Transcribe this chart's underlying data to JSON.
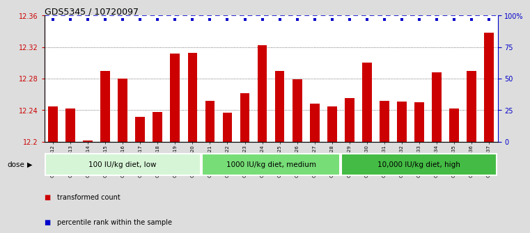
{
  "title": "GDS5345 / 10720097",
  "samples": [
    "GSM1502412",
    "GSM1502413",
    "GSM1502414",
    "GSM1502415",
    "GSM1502416",
    "GSM1502417",
    "GSM1502418",
    "GSM1502419",
    "GSM1502420",
    "GSM1502421",
    "GSM1502422",
    "GSM1502423",
    "GSM1502424",
    "GSM1502425",
    "GSM1502426",
    "GSM1502427",
    "GSM1502428",
    "GSM1502429",
    "GSM1502430",
    "GSM1502431",
    "GSM1502432",
    "GSM1502433",
    "GSM1502434",
    "GSM1502435",
    "GSM1502436",
    "GSM1502437"
  ],
  "values": [
    12.245,
    12.242,
    12.202,
    12.29,
    12.28,
    12.232,
    12.238,
    12.312,
    12.313,
    12.252,
    12.237,
    12.262,
    12.322,
    12.29,
    12.279,
    12.248,
    12.245,
    12.255,
    12.3,
    12.252,
    12.251,
    12.25,
    12.288,
    12.242,
    12.29,
    12.338
  ],
  "percentile_values": [
    97,
    97,
    97,
    97,
    97,
    97,
    97,
    97,
    97,
    97,
    97,
    97,
    97,
    97,
    97,
    97,
    97,
    97,
    97,
    97,
    97,
    97,
    97,
    97,
    97,
    97
  ],
  "bar_color": "#cc0000",
  "dot_color": "#0000cc",
  "ylim": [
    12.2,
    12.36
  ],
  "yticks": [
    12.2,
    12.24,
    12.28,
    12.32,
    12.36
  ],
  "ytick_labels": [
    "12.2",
    "12.24",
    "12.28",
    "12.32",
    "12.36"
  ],
  "y2ticks": [
    0,
    25,
    50,
    75,
    100
  ],
  "y2tick_labels": [
    "0",
    "25",
    "50",
    "75",
    "100%"
  ],
  "grid_values": [
    12.24,
    12.28,
    12.32
  ],
  "groups": [
    {
      "label": "100 IU/kg diet, low",
      "start": 0,
      "end": 9,
      "color": "#d6f5d6"
    },
    {
      "label": "1000 IU/kg diet, medium",
      "start": 9,
      "end": 17,
      "color": "#77dd77"
    },
    {
      "label": "10,000 IU/kg diet, high",
      "start": 17,
      "end": 26,
      "color": "#44bb44"
    }
  ],
  "dose_label": "dose",
  "legend_items": [
    {
      "label": "transformed count",
      "color": "#cc0000"
    },
    {
      "label": "percentile rank within the sample",
      "color": "#0000cc"
    }
  ],
  "background_color": "#dddddd",
  "plot_bg_color": "#ffffff"
}
